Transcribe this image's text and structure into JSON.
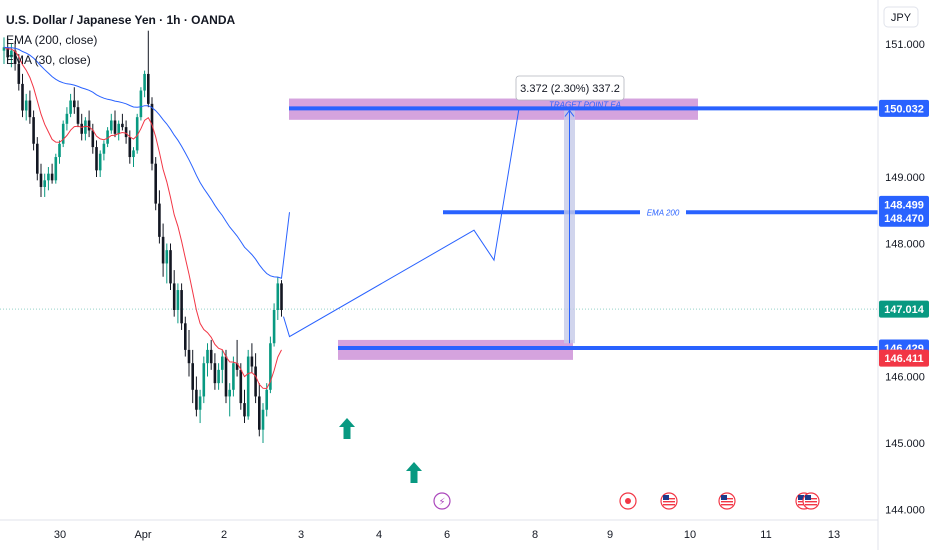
{
  "header": {
    "title": "U.S. Dollar / Japanese Yen · 1h · OANDA",
    "indicators": [
      "EMA (200, close)",
      "EMA (30, close)"
    ]
  },
  "currency_button": "JPY",
  "colors": {
    "bull": "#089981",
    "bear": "#131722",
    "ema200": "#2962ff",
    "ema30": "#f23645",
    "level": "#2962ff",
    "zone": "#ce93d8",
    "arrow": "#089981",
    "price_tag": "#089981",
    "ema30_tag": "#f23645",
    "measure": "#c5cae9"
  },
  "chart_data": {
    "type": "candlestick",
    "y_axis": {
      "ticks": [
        "151.000",
        "149.000",
        "148.000",
        "147.000",
        "146.000",
        "145.000",
        "144.000"
      ],
      "range": [
        144.0,
        151.5
      ]
    },
    "x_axis": {
      "ticks": [
        "30",
        "Apr",
        "2",
        "3",
        "4",
        "6",
        "8",
        "9",
        "10",
        "11",
        "13"
      ]
    },
    "price_tags": [
      {
        "label": "150.032",
        "value": 150.032,
        "kind": "level"
      },
      {
        "label": "148.499",
        "value": 148.499,
        "kind": "level"
      },
      {
        "label": "148.470",
        "value": 148.47,
        "kind": "level"
      },
      {
        "label": "147.014",
        "value": 147.014,
        "kind": "last"
      },
      {
        "label": "146.429",
        "value": 146.429,
        "kind": "level"
      },
      {
        "label": "146.411",
        "value": 146.411,
        "kind": "ema30"
      }
    ],
    "annotations": {
      "measure_label": "3.372 (2.30%) 337.2",
      "target_label": "TRAGET POINT EA",
      "ema_label": "EMA 200"
    },
    "levels": [
      150.032,
      148.47,
      146.429
    ],
    "zones": [
      {
        "from": 149.86,
        "to": 150.18
      },
      {
        "from": 146.25,
        "to": 146.55
      }
    ],
    "projection": [
      148.47,
      147.0,
      148.2,
      147.75,
      150.032
    ],
    "measure": {
      "from": 146.5,
      "to": 150.0
    },
    "candles": [
      [
        150.9,
        151.1,
        150.7,
        150.95
      ],
      [
        150.95,
        151.1,
        150.75,
        150.8
      ],
      [
        150.8,
        151.0,
        150.65,
        150.9
      ],
      [
        150.9,
        151.05,
        150.6,
        150.7
      ],
      [
        150.7,
        150.85,
        150.3,
        150.4
      ],
      [
        150.4,
        150.55,
        149.9,
        150.0
      ],
      [
        150.0,
        150.25,
        149.85,
        150.15
      ],
      [
        150.15,
        150.3,
        149.8,
        149.9
      ],
      [
        149.9,
        150.0,
        149.4,
        149.5
      ],
      [
        149.5,
        149.6,
        148.95,
        149.05
      ],
      [
        149.05,
        149.2,
        148.7,
        148.85
      ],
      [
        148.85,
        149.05,
        148.7,
        148.95
      ],
      [
        148.95,
        149.15,
        148.8,
        149.05
      ],
      [
        149.05,
        149.2,
        148.9,
        148.95
      ],
      [
        148.95,
        149.35,
        148.9,
        149.3
      ],
      [
        149.3,
        149.55,
        149.2,
        149.5
      ],
      [
        149.5,
        149.85,
        149.45,
        149.8
      ],
      [
        149.8,
        150.05,
        149.7,
        149.95
      ],
      [
        149.95,
        150.25,
        149.9,
        150.15
      ],
      [
        150.15,
        150.35,
        149.95,
        150.05
      ],
      [
        150.05,
        150.15,
        149.75,
        149.8
      ],
      [
        149.8,
        149.95,
        149.55,
        149.65
      ],
      [
        149.65,
        149.9,
        149.55,
        149.85
      ],
      [
        149.85,
        150.0,
        149.6,
        149.7
      ],
      [
        149.7,
        149.8,
        149.35,
        149.45
      ],
      [
        149.45,
        149.55,
        149.0,
        149.1
      ],
      [
        149.1,
        149.4,
        149.0,
        149.35
      ],
      [
        149.35,
        149.55,
        149.25,
        149.5
      ],
      [
        149.5,
        149.75,
        149.45,
        149.7
      ],
      [
        149.7,
        149.95,
        149.65,
        149.85
      ],
      [
        149.85,
        150.0,
        149.6,
        149.65
      ],
      [
        149.65,
        149.85,
        149.55,
        149.8
      ],
      [
        149.8,
        149.95,
        149.7,
        149.75
      ],
      [
        149.75,
        149.85,
        149.5,
        149.6
      ],
      [
        149.6,
        149.7,
        149.2,
        149.3
      ],
      [
        149.3,
        149.45,
        149.15,
        149.4
      ],
      [
        149.4,
        149.95,
        149.35,
        149.9
      ],
      [
        149.9,
        150.35,
        149.85,
        150.3
      ],
      [
        150.3,
        150.6,
        150.2,
        150.55
      ],
      [
        150.55,
        151.2,
        150.05,
        150.1
      ],
      [
        150.1,
        150.2,
        149.1,
        149.2
      ],
      [
        149.2,
        149.3,
        148.5,
        148.6
      ],
      [
        148.6,
        148.8,
        148.0,
        148.1
      ],
      [
        148.1,
        148.3,
        147.5,
        147.7
      ],
      [
        147.7,
        148.0,
        147.4,
        147.9
      ],
      [
        147.9,
        148.0,
        147.3,
        147.4
      ],
      [
        147.4,
        147.6,
        146.9,
        147.0
      ],
      [
        147.0,
        147.4,
        146.8,
        147.3
      ],
      [
        147.3,
        147.4,
        146.7,
        146.8
      ],
      [
        146.8,
        146.9,
        146.3,
        146.4
      ],
      [
        146.4,
        146.7,
        146.0,
        146.2
      ],
      [
        146.2,
        146.4,
        145.6,
        145.8
      ],
      [
        145.8,
        146.0,
        145.4,
        145.5
      ],
      [
        145.5,
        145.8,
        145.3,
        145.7
      ],
      [
        145.7,
        146.3,
        145.6,
        146.2
      ],
      [
        146.2,
        146.5,
        146.0,
        146.4
      ],
      [
        146.4,
        146.55,
        146.1,
        146.2
      ],
      [
        146.2,
        146.35,
        145.8,
        145.9
      ],
      [
        145.9,
        146.2,
        145.8,
        146.1
      ],
      [
        146.1,
        146.4,
        145.9,
        146.3
      ],
      [
        146.3,
        146.4,
        145.6,
        145.7
      ],
      [
        145.7,
        145.9,
        145.4,
        145.8
      ],
      [
        145.8,
        146.3,
        145.7,
        146.2
      ],
      [
        146.2,
        146.55,
        146.0,
        146.1
      ],
      [
        146.1,
        146.2,
        145.5,
        145.6
      ],
      [
        145.6,
        145.8,
        145.3,
        145.4
      ],
      [
        145.4,
        146.4,
        145.35,
        146.3
      ],
      [
        146.3,
        146.5,
        146.05,
        146.15
      ],
      [
        146.15,
        146.35,
        145.6,
        145.7
      ],
      [
        145.7,
        145.9,
        145.1,
        145.2
      ],
      [
        145.2,
        145.6,
        145.0,
        145.5
      ],
      [
        145.5,
        145.9,
        145.4,
        145.8
      ],
      [
        145.8,
        146.6,
        145.75,
        146.5
      ],
      [
        146.5,
        147.1,
        146.45,
        147.0
      ],
      [
        147.0,
        147.5,
        146.85,
        147.4
      ],
      [
        147.4,
        147.45,
        146.9,
        147.0
      ]
    ]
  }
}
